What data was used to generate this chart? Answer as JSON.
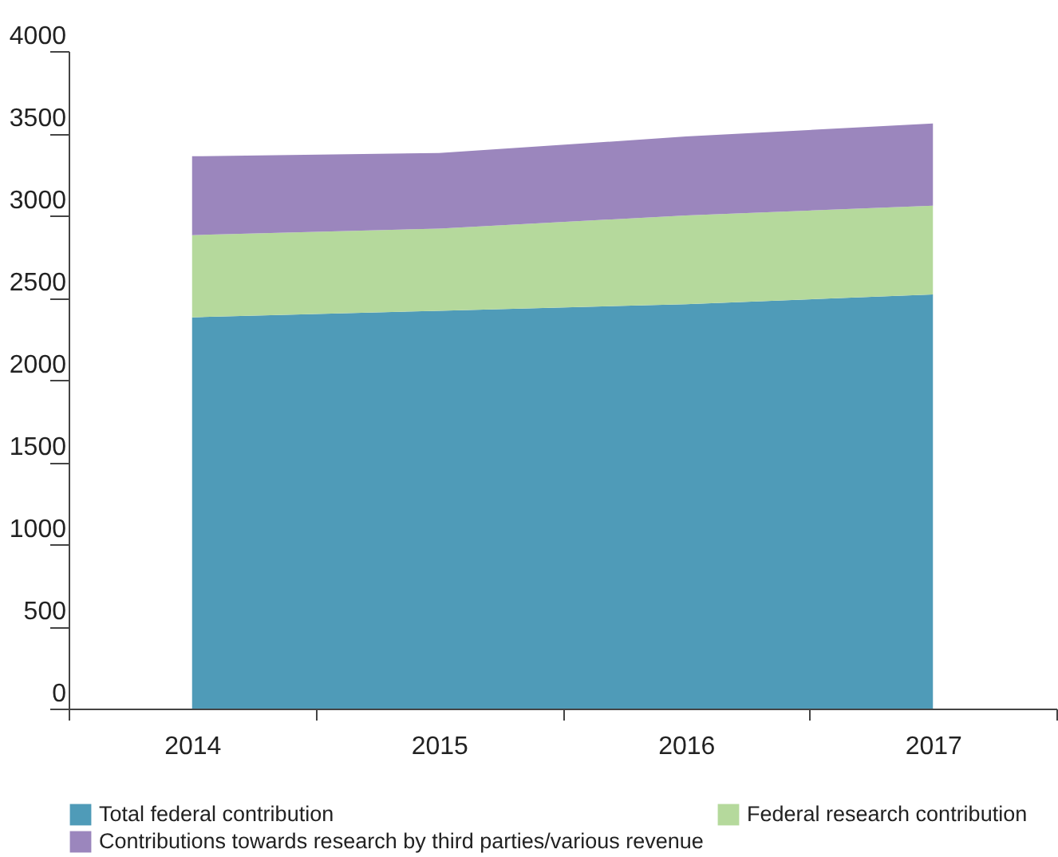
{
  "chart_data": {
    "type": "area",
    "stacked": true,
    "categories": [
      "2014",
      "2015",
      "2016",
      "2017"
    ],
    "series": [
      {
        "name": "Total federal contribution",
        "color": "#4f9bb8",
        "values": [
          2380,
          2420,
          2460,
          2520
        ]
      },
      {
        "name": "Federal research contribution",
        "color": "#b5d99c",
        "values": [
          500,
          500,
          540,
          540
        ]
      },
      {
        "name": "Contributions towards research by third parties/various revenue",
        "color": "#9b86bd",
        "values": [
          480,
          460,
          480,
          500
        ]
      }
    ],
    "ylim": [
      0,
      4000
    ],
    "yticks": [
      0,
      500,
      1000,
      1500,
      2000,
      2500,
      3000,
      3500,
      4000
    ],
    "grid": false,
    "legend": "bottom"
  }
}
